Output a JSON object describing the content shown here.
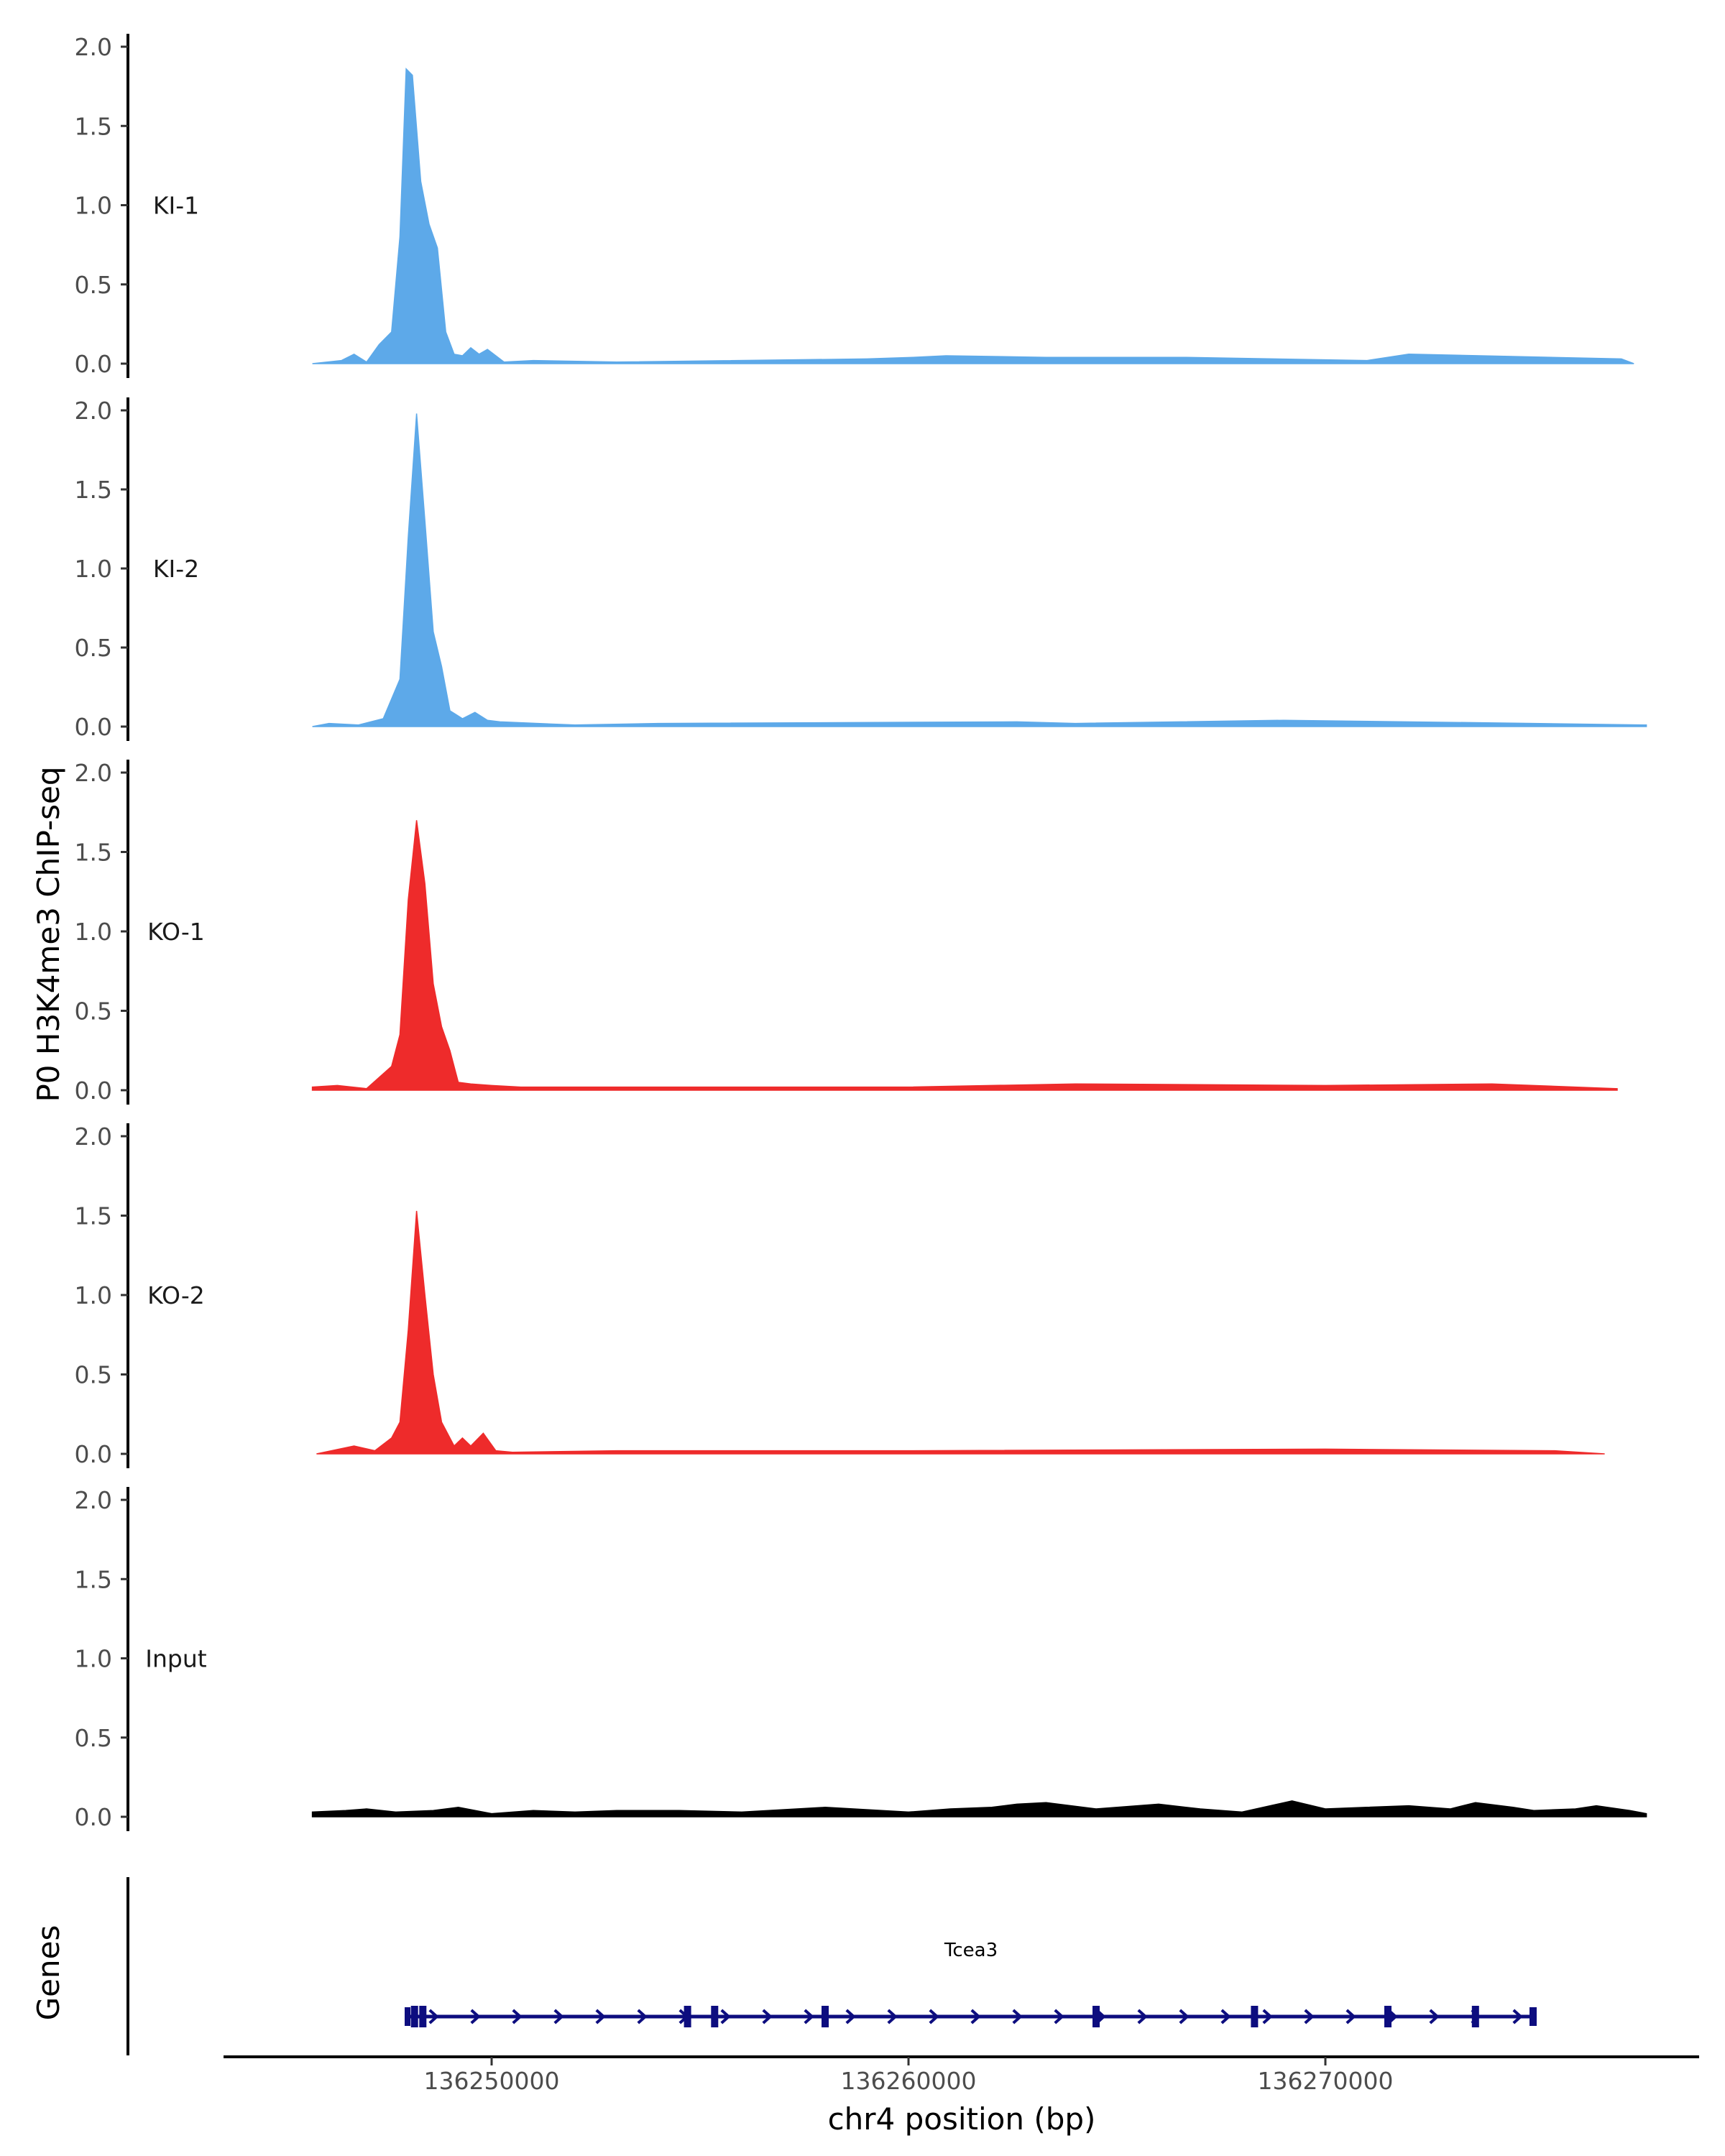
{
  "chart_data": {
    "type": "area",
    "ylabel": "P0 H3K4me3 ChIP-seq",
    "genes_label": "Genes",
    "xlabel": "chr4 position (bp)",
    "x_ticks": [
      136250000,
      136260000,
      136270000
    ],
    "x_tick_labels": [
      "136250000",
      "136260000",
      "136270000"
    ],
    "xlim": [
      136244000,
      136279000
    ],
    "ylim": [
      0,
      2.0
    ],
    "y_ticks": [
      0.0,
      0.5,
      1.0,
      1.5,
      2.0
    ],
    "y_tick_labels": [
      "0.0",
      "0.5",
      "1.0",
      "1.5",
      "2.0"
    ],
    "grid": false,
    "legend": "none",
    "tracks": [
      {
        "name": "KI-1",
        "color": "#5DA9E9",
        "points": [
          [
            136245700,
            0
          ],
          [
            136246400,
            0.02
          ],
          [
            136246700,
            0.06
          ],
          [
            136247000,
            0.01
          ],
          [
            136247300,
            0.12
          ],
          [
            136247600,
            0.2
          ],
          [
            136247800,
            0.8
          ],
          [
            136247950,
            1.86
          ],
          [
            136248100,
            1.82
          ],
          [
            136248300,
            1.15
          ],
          [
            136248500,
            0.88
          ],
          [
            136248700,
            0.73
          ],
          [
            136248900,
            0.2
          ],
          [
            136249100,
            0.06
          ],
          [
            136249300,
            0.05
          ],
          [
            136249500,
            0.1
          ],
          [
            136249700,
            0.06
          ],
          [
            136249900,
            0.09
          ],
          [
            136250300,
            0.01
          ],
          [
            136251000,
            0.02
          ],
          [
            136253000,
            0.01
          ],
          [
            136259000,
            0.03
          ],
          [
            136260100,
            0.04
          ],
          [
            136260900,
            0.05
          ],
          [
            136263300,
            0.04
          ],
          [
            136266600,
            0.04
          ],
          [
            136271000,
            0.02
          ],
          [
            136272000,
            0.06
          ],
          [
            136277100,
            0.03
          ],
          [
            136277400,
            0
          ]
        ]
      },
      {
        "name": "KI-2",
        "color": "#5DA9E9",
        "points": [
          [
            136245700,
            0
          ],
          [
            136246100,
            0.02
          ],
          [
            136246800,
            0.01
          ],
          [
            136247400,
            0.05
          ],
          [
            136247800,
            0.3
          ],
          [
            136248000,
            1.2
          ],
          [
            136248200,
            1.98
          ],
          [
            136248400,
            1.3
          ],
          [
            136248600,
            0.6
          ],
          [
            136248800,
            0.38
          ],
          [
            136249000,
            0.1
          ],
          [
            136249300,
            0.05
          ],
          [
            136249600,
            0.09
          ],
          [
            136249900,
            0.04
          ],
          [
            136250200,
            0.03
          ],
          [
            136252000,
            0.01
          ],
          [
            136254000,
            0.02
          ],
          [
            136262600,
            0.03
          ],
          [
            136264000,
            0.02
          ],
          [
            136269000,
            0.04
          ],
          [
            136275000,
            0.02
          ],
          [
            136277700,
            0.01
          ]
        ]
      },
      {
        "name": "KO-1",
        "color": "#EE2B2B",
        "points": [
          [
            136245700,
            0.02
          ],
          [
            136246300,
            0.03
          ],
          [
            136247000,
            0.01
          ],
          [
            136247600,
            0.15
          ],
          [
            136247800,
            0.35
          ],
          [
            136248000,
            1.2
          ],
          [
            136248200,
            1.7
          ],
          [
            136248400,
            1.3
          ],
          [
            136248600,
            0.67
          ],
          [
            136248800,
            0.4
          ],
          [
            136249000,
            0.25
          ],
          [
            136249200,
            0.05
          ],
          [
            136249500,
            0.04
          ],
          [
            136250000,
            0.03
          ],
          [
            136250700,
            0.02
          ],
          [
            136253000,
            0.02
          ],
          [
            136260000,
            0.02
          ],
          [
            136264000,
            0.04
          ],
          [
            136270000,
            0.03
          ],
          [
            136274000,
            0.04
          ],
          [
            136277000,
            0.01
          ]
        ]
      },
      {
        "name": "KO-2",
        "color": "#EE2B2B",
        "points": [
          [
            136245800,
            0
          ],
          [
            136246700,
            0.05
          ],
          [
            136247200,
            0.02
          ],
          [
            136247600,
            0.1
          ],
          [
            136247800,
            0.2
          ],
          [
            136248000,
            0.78
          ],
          [
            136248200,
            1.53
          ],
          [
            136248400,
            1.0
          ],
          [
            136248600,
            0.5
          ],
          [
            136248800,
            0.2
          ],
          [
            136249100,
            0.05
          ],
          [
            136249300,
            0.1
          ],
          [
            136249500,
            0.05
          ],
          [
            136249800,
            0.13
          ],
          [
            136250100,
            0.02
          ],
          [
            136250500,
            0.01
          ],
          [
            136253000,
            0.02
          ],
          [
            136260000,
            0.02
          ],
          [
            136270000,
            0.03
          ],
          [
            136275500,
            0.02
          ],
          [
            136276700,
            0
          ]
        ]
      },
      {
        "name": "Input",
        "color": "#000000",
        "points": [
          [
            136245700,
            0.03
          ],
          [
            136246500,
            0.04
          ],
          [
            136247000,
            0.05
          ],
          [
            136247700,
            0.03
          ],
          [
            136248600,
            0.04
          ],
          [
            136249200,
            0.06
          ],
          [
            136250000,
            0.02
          ],
          [
            136251000,
            0.04
          ],
          [
            136252000,
            0.03
          ],
          [
            136253000,
            0.04
          ],
          [
            136254500,
            0.04
          ],
          [
            136256000,
            0.03
          ],
          [
            136258000,
            0.06
          ],
          [
            136260000,
            0.03
          ],
          [
            136261000,
            0.05
          ],
          [
            136262000,
            0.06
          ],
          [
            136262600,
            0.08
          ],
          [
            136263300,
            0.09
          ],
          [
            136264500,
            0.05
          ],
          [
            136266000,
            0.08
          ],
          [
            136267000,
            0.05
          ],
          [
            136268000,
            0.03
          ],
          [
            136269200,
            0.1
          ],
          [
            136270000,
            0.05
          ],
          [
            136271000,
            0.06
          ],
          [
            136272000,
            0.07
          ],
          [
            136273000,
            0.05
          ],
          [
            136273600,
            0.09
          ],
          [
            136274500,
            0.06
          ],
          [
            136275000,
            0.04
          ],
          [
            136276000,
            0.05
          ],
          [
            136276500,
            0.07
          ],
          [
            136277300,
            0.04
          ],
          [
            136277700,
            0.02
          ]
        ]
      }
    ],
    "gene": {
      "name": "Tcea3",
      "color": "#0D0D7F",
      "start": 136248000,
      "end": 136275000,
      "strand": "+",
      "exons": [
        136248150,
        136248350,
        136254700,
        136255350,
        136258000,
        136264500,
        136268300,
        136271500,
        136273600
      ]
    }
  }
}
